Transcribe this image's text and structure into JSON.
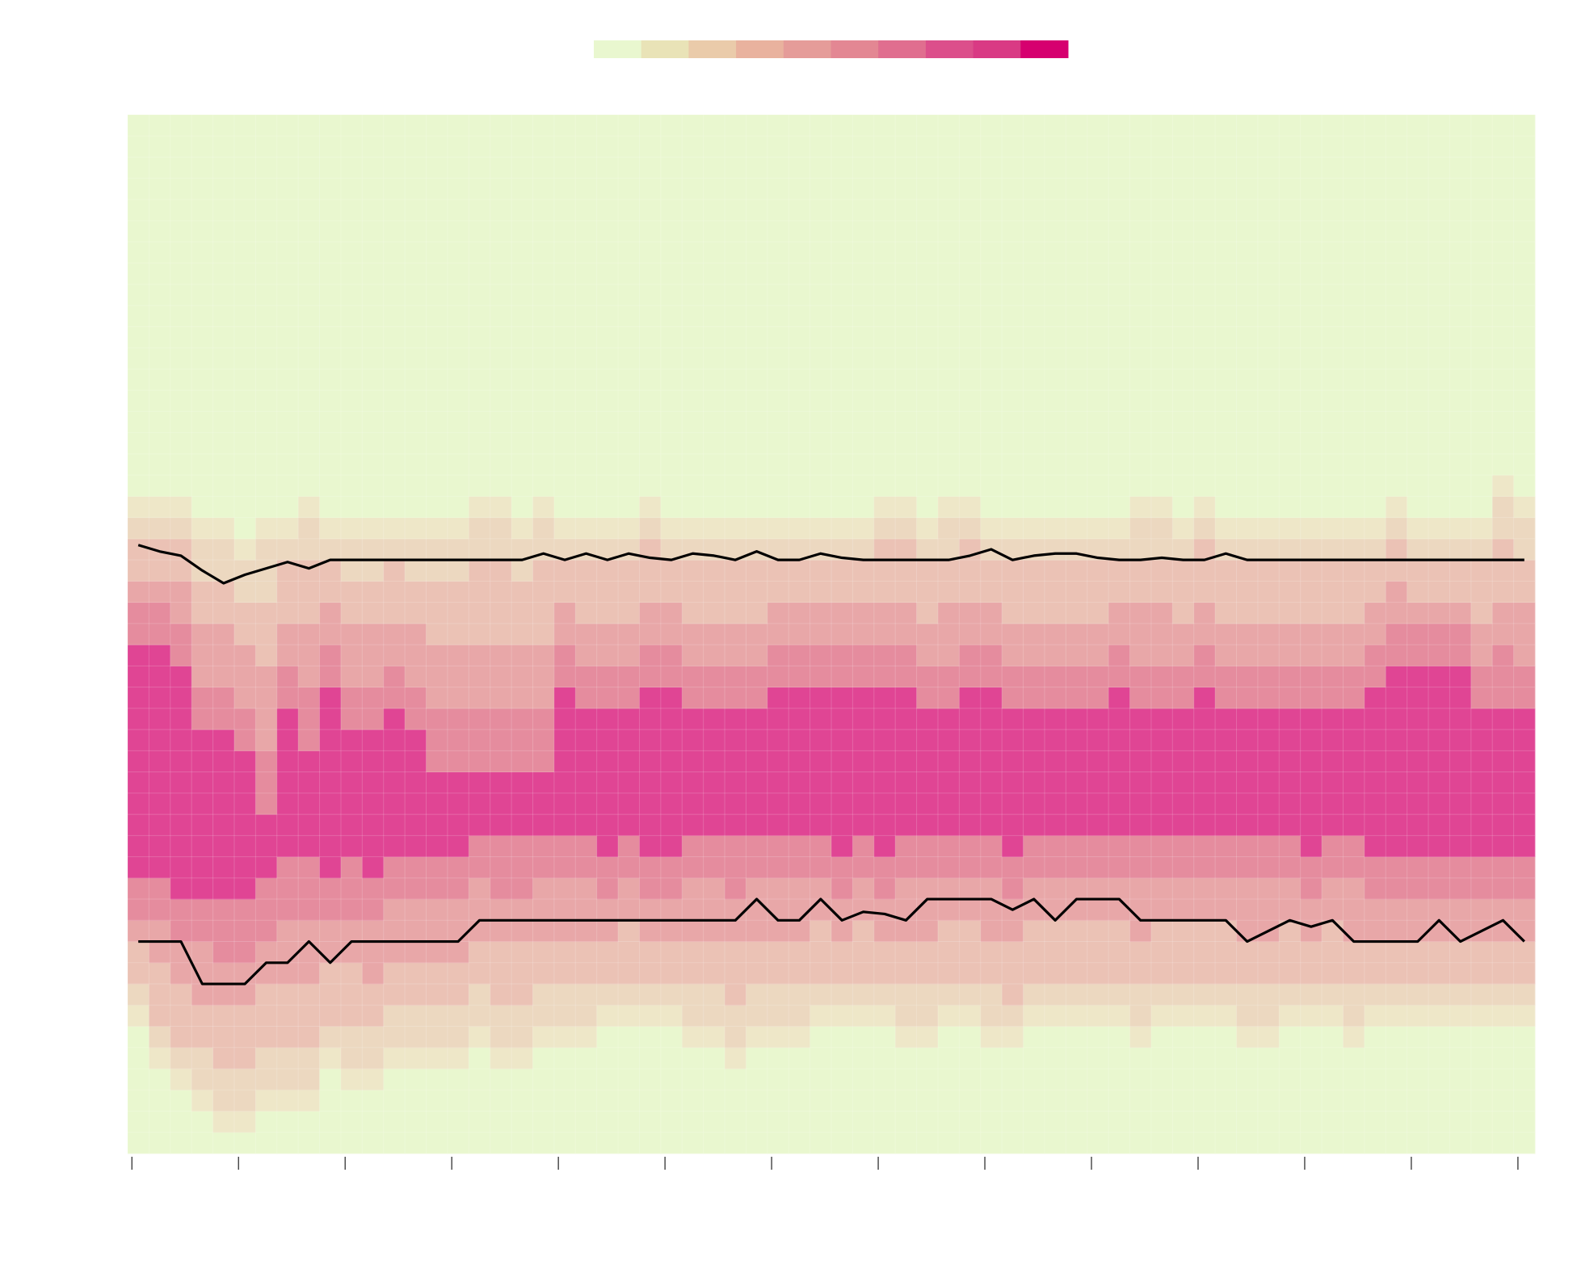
{
  "chart_data": {
    "type": "heatmap",
    "title": "",
    "xlabel": "",
    "ylabel": "",
    "grid": false,
    "legend": {
      "placement": "top-center",
      "colors": [
        "#e9f7cf",
        "#e9e3b7",
        "#eacbaa",
        "#e9b29e",
        "#e59c99",
        "#e38793",
        "#e06e8f",
        "#dc4f8b",
        "#d93a84",
        "#d6006f"
      ]
    },
    "band_colors": {
      "outer": "#e9f7cf",
      "b1": "#eee7c8",
      "b2": "#ecd8c0",
      "b3": "#ebc2b5",
      "b4": "#e8a7a8",
      "b5": "#e58c9e",
      "inner": "#e04594"
    },
    "x_range": [
      0,
      66
    ],
    "x_ticks": [
      0,
      5,
      10,
      15,
      20,
      25,
      30,
      35,
      40,
      45,
      50,
      55,
      60,
      65
    ],
    "y_range": [
      0,
      49
    ],
    "columns": 66,
    "rows": 49,
    "profiles": {
      "inner_top": [
        24,
        24,
        23,
        20,
        20,
        19,
        16,
        21,
        19,
        22,
        20,
        20,
        21,
        20,
        18,
        18,
        18,
        18,
        18,
        18,
        22,
        21,
        21,
        21,
        22,
        22,
        21,
        21,
        21,
        21,
        22,
        22,
        22,
        22,
        22,
        22,
        22,
        21,
        21,
        22,
        22,
        21,
        21,
        21,
        21,
        21,
        22,
        21,
        21,
        21,
        22,
        21,
        21,
        21,
        21,
        21,
        21,
        21,
        22,
        23,
        23,
        23,
        23,
        21,
        21,
        21,
        21
      ],
      "inner_bottom": [
        13,
        13,
        12,
        12,
        12,
        12,
        13,
        14,
        14,
        13,
        14,
        13,
        14,
        14,
        14,
        14,
        15,
        15,
        15,
        15,
        15,
        15,
        14,
        15,
        14,
        14,
        15,
        15,
        15,
        15,
        15,
        15,
        15,
        14,
        15,
        14,
        15,
        15,
        15,
        15,
        15,
        14,
        15,
        15,
        15,
        15,
        15,
        15,
        15,
        15,
        15,
        15,
        15,
        15,
        15,
        14,
        15,
        15,
        14,
        14,
        14,
        14,
        14,
        14,
        14,
        14,
        14
      ],
      "band_top": [
        31,
        31,
        31,
        30,
        30,
        29,
        30,
        30,
        31,
        30,
        30,
        30,
        30,
        30,
        30,
        30,
        31,
        31,
        30,
        31,
        30,
        30,
        30,
        30,
        31,
        30,
        30,
        30,
        30,
        30,
        30,
        30,
        30,
        30,
        30,
        31,
        31,
        30,
        31,
        31,
        30,
        30,
        30,
        30,
        30,
        30,
        30,
        31,
        31,
        30,
        31,
        30,
        30,
        30,
        30,
        30,
        30,
        30,
        30,
        31,
        30,
        30,
        30,
        30,
        32,
        31,
        30
      ],
      "band_bottom": [
        6,
        4,
        3,
        2,
        1,
        1,
        2,
        2,
        2,
        4,
        3,
        3,
        4,
        4,
        4,
        4,
        5,
        4,
        4,
        5,
        5,
        5,
        6,
        6,
        6,
        6,
        5,
        5,
        4,
        5,
        5,
        5,
        6,
        6,
        6,
        6,
        5,
        5,
        6,
        6,
        5,
        5,
        6,
        6,
        6,
        6,
        6,
        5,
        6,
        6,
        6,
        6,
        5,
        5,
        6,
        6,
        6,
        5,
        6,
        6,
        6,
        6,
        6,
        6,
        6,
        6,
        6
      ]
    },
    "series": [
      {
        "name": "",
        "values": [
          28.7,
          28.4,
          28.2,
          27.5,
          26.9,
          27.3,
          27.6,
          27.9,
          27.6,
          28.0,
          28.0,
          28.0,
          28.0,
          28.0,
          28.0,
          28.0,
          28.0,
          28.0,
          28.0,
          28.3,
          28.0,
          28.3,
          28.0,
          28.3,
          28.1,
          28.0,
          28.3,
          28.2,
          28.0,
          28.4,
          28.0,
          28.0,
          28.3,
          28.1,
          28.0,
          28.0,
          28.0,
          28.0,
          28.0,
          28.2,
          28.5,
          28.0,
          28.2,
          28.3,
          28.3,
          28.1,
          28.0,
          28.0,
          28.1,
          28.0,
          28.0,
          28.3,
          28.0,
          28.0,
          28.0,
          28.0,
          28.0,
          28.0,
          28.0,
          28.0,
          28.0,
          28.0,
          28.0,
          28.0,
          28.0,
          28.0
        ]
      },
      {
        "name": "",
        "values": [
          10.0,
          10.0,
          10.0,
          8.0,
          8.0,
          8.0,
          9.0,
          9.0,
          10.0,
          9.0,
          10.0,
          10.0,
          10.0,
          10.0,
          10.0,
          10.0,
          11.0,
          11.0,
          11.0,
          11.0,
          11.0,
          11.0,
          11.0,
          11.0,
          11.0,
          11.0,
          11.0,
          11.0,
          11.0,
          12.0,
          11.0,
          11.0,
          12.0,
          11.0,
          11.4,
          11.3,
          11.0,
          12.0,
          12.0,
          12.0,
          12.0,
          11.5,
          12.0,
          11.0,
          12.0,
          12.0,
          12.0,
          11.0,
          11.0,
          11.0,
          11.0,
          11.0,
          10.0,
          10.5,
          11.0,
          10.7,
          11.0,
          10.0,
          10.0,
          10.0,
          10.0,
          11.0,
          10.0,
          10.5,
          11.0,
          10.0
        ]
      }
    ]
  }
}
